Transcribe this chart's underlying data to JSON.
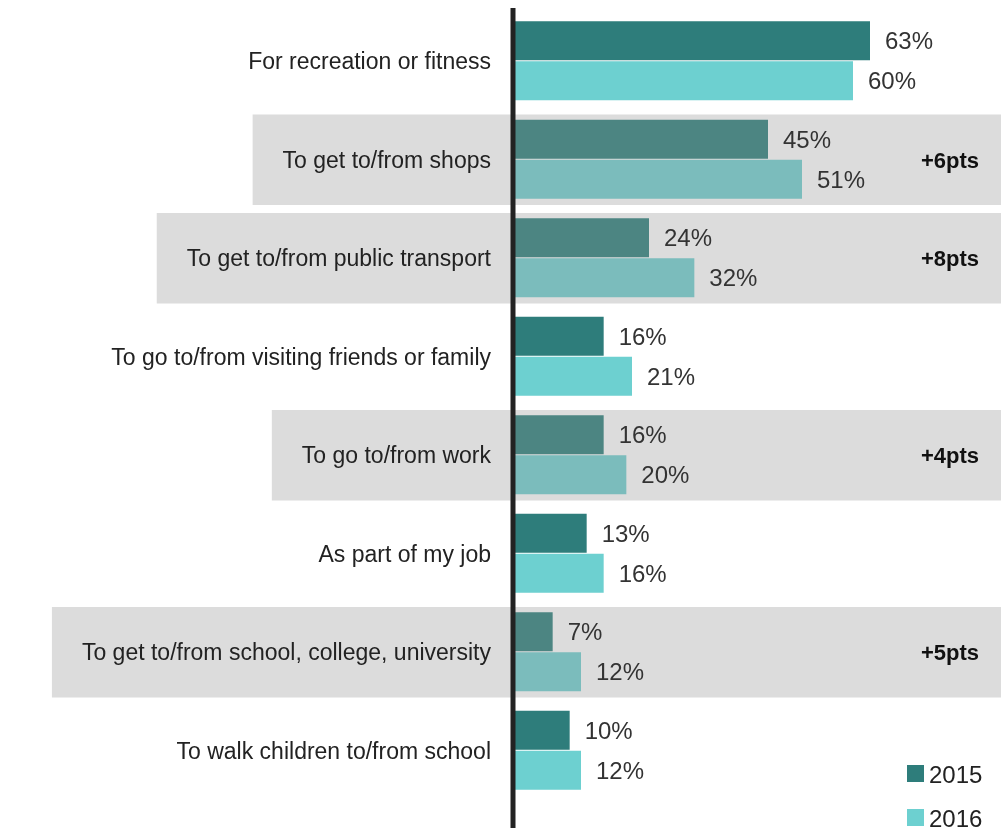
{
  "chart_data": {
    "type": "bar",
    "orientation": "horizontal",
    "categories": [
      "For recreation or fitness",
      "To get to/from shops",
      "To get to/from public transport",
      "To go to/from visiting friends or family",
      "To go to/from work",
      "As part of my job",
      "To get to/from school, college, university",
      "To walk children to/from school"
    ],
    "series": [
      {
        "name": "2015",
        "color": "#2e7d7b",
        "colors": [
          "#2e7d7b",
          "#4c8582",
          "#4c8582",
          "#2e7d7b",
          "#4c8582",
          "#2e7d7b",
          "#4c8582",
          "#2e7d7b"
        ],
        "values": [
          63,
          45,
          24,
          16,
          16,
          13,
          7,
          10
        ],
        "value_labels": [
          "63%",
          "45%",
          "24%",
          "16%",
          "16%",
          "13%",
          "7%",
          "10%"
        ]
      },
      {
        "name": "2016",
        "color": "#6dd0d0",
        "colors": [
          "#6dd0d0",
          "#7bbcbc",
          "#7bbcbc",
          "#6dd0d0",
          "#7bbcbc",
          "#6dd0d0",
          "#7bbcbc",
          "#6dd0d0"
        ],
        "values": [
          60,
          51,
          32,
          21,
          20,
          16,
          12,
          12
        ],
        "value_labels": [
          "60%",
          "51%",
          "32%",
          "21%",
          "20%",
          "16%",
          "12%",
          "12%"
        ]
      }
    ],
    "bands": [
      {
        "axis": "y",
        "from": "To get to/from shops",
        "to": "To get to/from shops",
        "label": "+6pts",
        "color": "#dcdcdc"
      },
      {
        "axis": "y",
        "from": "To get to/from public transport",
        "to": "To get to/from public transport",
        "label": "+8pts",
        "color": "#dcdcdc"
      },
      {
        "axis": "y",
        "from": "To go to/from work",
        "to": "To go to/from work",
        "label": "+4pts",
        "color": "#dcdcdc"
      },
      {
        "axis": "y",
        "from": "To get to/from school, college, university",
        "to": "To get to/from school, college, university",
        "label": "+5pts",
        "color": "#dcdcdc"
      }
    ],
    "legend": "bottom right"
  }
}
